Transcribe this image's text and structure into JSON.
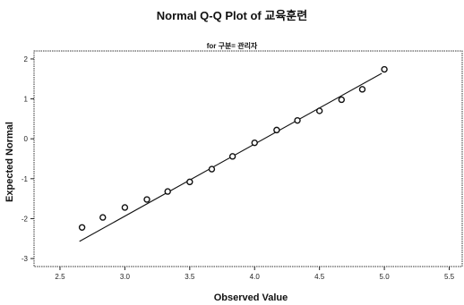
{
  "chart_data": {
    "type": "scatter",
    "title": "Normal Q-Q Plot of 교육훈련",
    "subtitle": "for 구분= 관리자",
    "xlabel": "Observed Value",
    "ylabel": "Expected Normal",
    "xlim": [
      2.3,
      5.6
    ],
    "ylim": [
      -3.2,
      2.2
    ],
    "x_ticks": [
      "2.5",
      "3.0",
      "3.5",
      "4.0",
      "4.5",
      "5.0",
      "5.5"
    ],
    "y_ticks": [
      "2",
      "1",
      "0",
      "-1",
      "-2",
      "-3"
    ],
    "x_tick_values": [
      2.5,
      3.0,
      3.5,
      4.0,
      4.5,
      5.0,
      5.5
    ],
    "y_tick_values": [
      2,
      1,
      0,
      -1,
      -2,
      -3
    ],
    "points": [
      {
        "x": 2.67,
        "y": -2.22
      },
      {
        "x": 2.83,
        "y": -1.97
      },
      {
        "x": 3.0,
        "y": -1.72
      },
      {
        "x": 3.17,
        "y": -1.52
      },
      {
        "x": 3.33,
        "y": -1.32
      },
      {
        "x": 3.5,
        "y": -1.08
      },
      {
        "x": 3.67,
        "y": -0.76
      },
      {
        "x": 3.83,
        "y": -0.44
      },
      {
        "x": 4.0,
        "y": -0.1
      },
      {
        "x": 4.17,
        "y": 0.22
      },
      {
        "x": 4.33,
        "y": 0.46
      },
      {
        "x": 4.5,
        "y": 0.7
      },
      {
        "x": 4.67,
        "y": 0.98
      },
      {
        "x": 4.83,
        "y": 1.24
      },
      {
        "x": 5.0,
        "y": 1.74
      }
    ],
    "reference_line": {
      "x1": 2.65,
      "y1": -2.57,
      "x2": 4.98,
      "y2": 1.64
    },
    "grid": false
  }
}
